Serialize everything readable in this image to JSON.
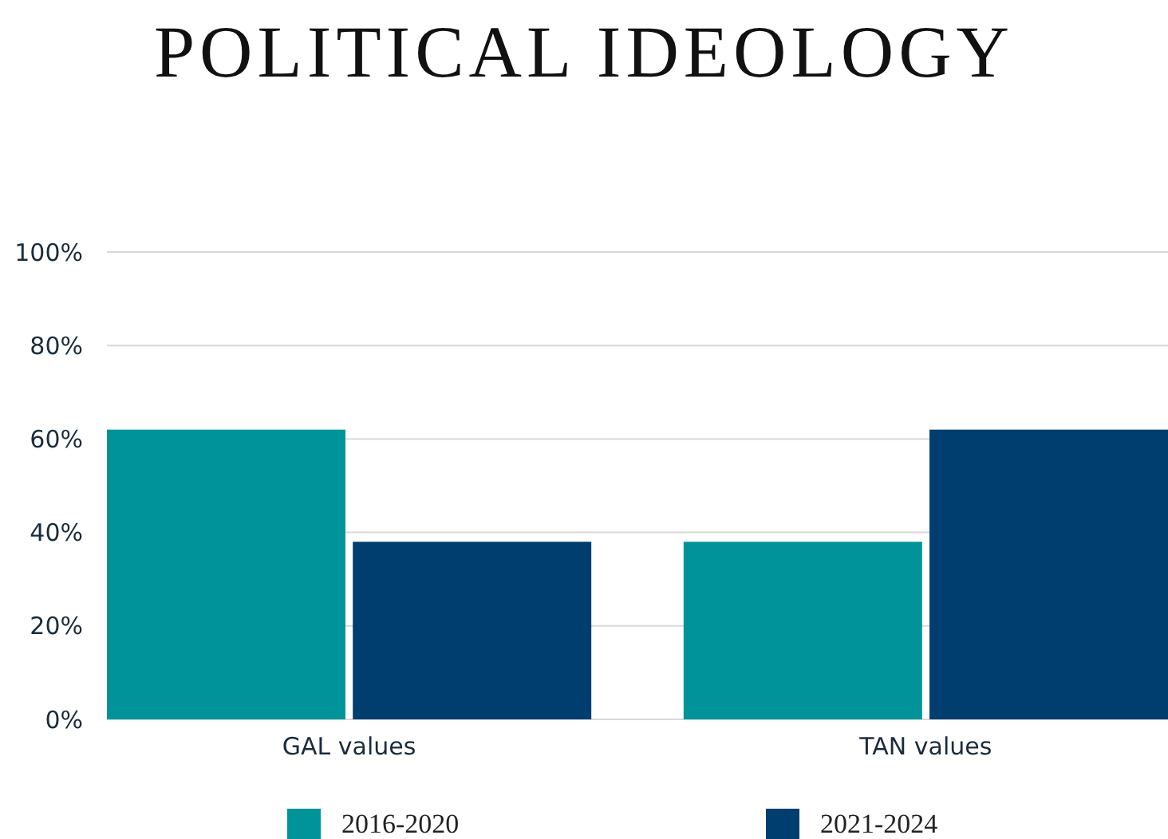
{
  "chart_data": {
    "type": "bar",
    "title": "POLITICAL IDEOLOGY",
    "categories": [
      "GAL values",
      "TAN values"
    ],
    "series": [
      {
        "name": "2016-2020",
        "color": "#00939a",
        "values": [
          62,
          38
        ]
      },
      {
        "name": "2021-2024",
        "color": "#013e70",
        "values": [
          38,
          62
        ]
      }
    ],
    "ylim": [
      0,
      100
    ],
    "yticks": [
      {
        "value": 0,
        "label": "0%"
      },
      {
        "value": 20,
        "label": "20%"
      },
      {
        "value": 40,
        "label": "40%"
      },
      {
        "value": 60,
        "label": "60%"
      },
      {
        "value": 80,
        "label": "80%"
      },
      {
        "value": 100,
        "label": "100%"
      }
    ],
    "grid": "y",
    "legend": "bottom"
  }
}
